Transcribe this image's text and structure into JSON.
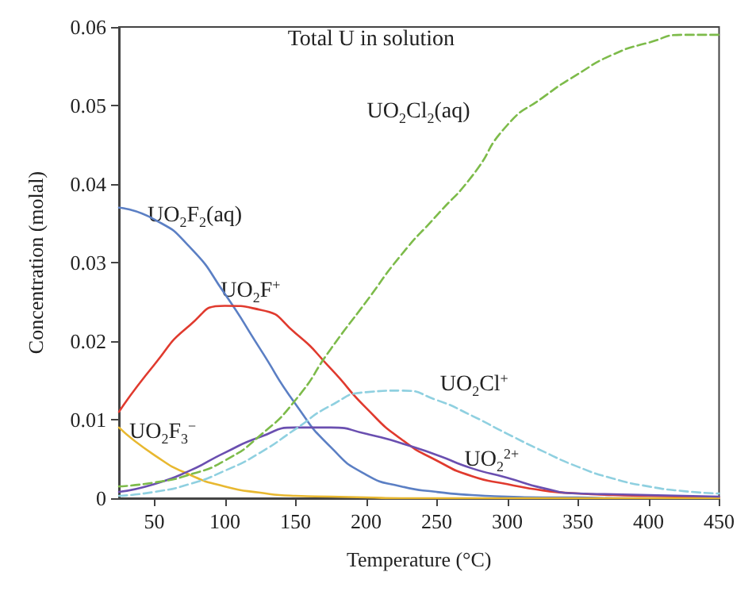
{
  "chart_data": {
    "type": "line",
    "xlabel": "Temperature (°C)",
    "ylabel": "Concentration (molal)",
    "xlim": [
      25,
      450
    ],
    "xticks": [
      50,
      100,
      150,
      200,
      250,
      300,
      350,
      400,
      450
    ],
    "ylim": [
      0,
      0.06
    ],
    "yticks": [
      0,
      0.01,
      0.02,
      0.03,
      0.04,
      0.05,
      0.06
    ],
    "grid": false,
    "marker": "none",
    "x": [
      25,
      50,
      75,
      100,
      125,
      150,
      175,
      200,
      225,
      250,
      275,
      300,
      325,
      350,
      375,
      400,
      425,
      450
    ],
    "series": [
      {
        "color": "#5b7fc4",
        "line_style": "solid",
        "values": [
          0.037,
          0.0355,
          0.032,
          0.026,
          0.019,
          0.012,
          0.0065,
          0.003,
          0.0015,
          0.0008,
          0.0004,
          0.0002,
          0.0001,
          0.0001,
          0,
          0,
          0,
          0
        ]
      },
      {
        "color": "#e03a2e",
        "line_style": "solid",
        "values": [
          0.011,
          0.017,
          0.022,
          0.0245,
          0.024,
          0.021,
          0.0165,
          0.0115,
          0.0075,
          0.0048,
          0.0028,
          0.0018,
          0.001,
          0.0006,
          0.0004,
          0.0003,
          0.0002,
          0.0001
        ]
      },
      {
        "color": "#e8b830",
        "line_style": "solid",
        "values": [
          0.009,
          0.0055,
          0.003,
          0.0015,
          0.0007,
          0.0003,
          0.0002,
          0.0001,
          0,
          0,
          0,
          0,
          0,
          0,
          0,
          0,
          0,
          0
        ]
      },
      {
        "color": "#6a4fb0",
        "line_style": "solid",
        "values": [
          0.0008,
          0.0018,
          0.0035,
          0.0058,
          0.0078,
          0.009,
          0.009,
          0.0082,
          0.007,
          0.0055,
          0.0038,
          0.0026,
          0.0013,
          0.0006,
          0.0005,
          0.0004,
          0.0003,
          0.0002
        ]
      },
      {
        "color": "#8fd0e0",
        "line_style": "dashed",
        "values": [
          0.0003,
          0.0008,
          0.0018,
          0.0035,
          0.0058,
          0.0088,
          0.0118,
          0.0135,
          0.0137,
          0.0125,
          0.0105,
          0.0082,
          0.006,
          0.004,
          0.0025,
          0.0015,
          0.0009,
          0.0006
        ]
      },
      {
        "color": "#7dbb4a",
        "line_style": "dashed",
        "values": [
          0.0015,
          0.002,
          0.003,
          0.0048,
          0.008,
          0.0125,
          0.019,
          0.025,
          0.031,
          0.036,
          0.041,
          0.0475,
          0.051,
          0.054,
          0.0565,
          0.058,
          0.059,
          0.059
        ]
      }
    ],
    "annotations": [
      "Total U in solution",
      "UO$_{2}$Cl$_{2}$(aq)",
      "UO$_{2}$F$_{2}$(aq)",
      "UO$_{2}$F$^{+}$",
      "UO$_{2}$Cl$^{+}$",
      "UO$_{2}$F$_{3}$$^{−}$",
      "UO$_{2}$$^{2+}$"
    ]
  }
}
